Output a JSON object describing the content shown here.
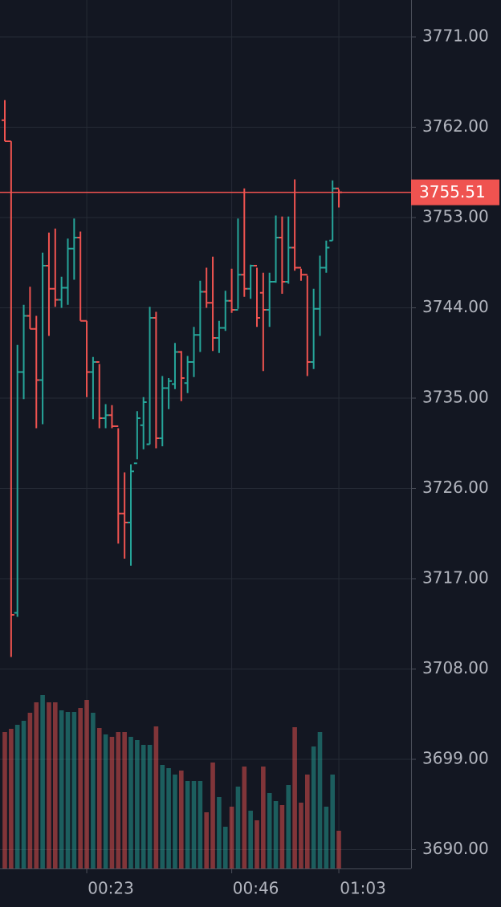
{
  "chart_data": {
    "type": "ohlc",
    "categories": [
      null,
      null,
      null,
      null,
      null,
      null,
      null,
      null,
      null,
      null,
      null,
      null,
      null,
      "00:23",
      null,
      null,
      null,
      null,
      null,
      null,
      null,
      null,
      null,
      null,
      null,
      null,
      null,
      null,
      null,
      null,
      null,
      null,
      null,
      null,
      null,
      null,
      "00:46",
      null,
      null,
      null,
      null,
      null,
      null,
      null,
      null,
      null,
      null,
      null,
      null,
      null,
      null,
      null,
      null,
      "01:03"
    ],
    "open": [
      3762.7,
      3760.6,
      3713.6,
      3737.6,
      3743.2,
      3741.9,
      3736.8,
      3748.2,
      3745.9,
      3744.8,
      3746.0,
      3749.9,
      3751.0,
      3742.7,
      3737.6,
      3738.6,
      3733.0,
      3733.3,
      3732.2,
      3723.5,
      3722.6,
      3728.5,
      3732.3,
      3730.4,
      3743.0,
      3731.0,
      3736.0,
      3736.4,
      3739.6,
      3736.5,
      3738.6,
      3741.3,
      3745.6,
      3744.5,
      3741.0,
      3742.0,
      3744.7,
      3743.8,
      3747.3,
      3745.9,
      3748.2,
      3745.5,
      3743.8,
      3746.6,
      3751.0,
      3746.6,
      3750.0,
      3748.0,
      3747.3,
      3738.6,
      3743.9,
      3748.0,
      3750.7,
      3755.9
    ],
    "high": [
      3764.7,
      3760.6,
      3740.3,
      3744.3,
      3746.1,
      3743.2,
      3749.5,
      3751.5,
      3751.9,
      3747.1,
      3750.9,
      3752.9,
      3751.6,
      3742.7,
      3739.1,
      3738.4,
      3734.4,
      3734.3,
      3732.0,
      3727.6,
      3728.4,
      3733.7,
      3735.1,
      3744.1,
      3743.6,
      3737.2,
      3737.0,
      3740.5,
      3739.7,
      3739.2,
      3742.1,
      3746.7,
      3748.0,
      3749.1,
      3742.7,
      3745.7,
      3747.9,
      3752.9,
      3755.9,
      3748.3,
      3748.0,
      3747.5,
      3747.5,
      3753.2,
      3753.1,
      3753.1,
      3756.8,
      3747.9,
      3747.2,
      3745.9,
      3749.2,
      3750.7,
      3756.7,
      3755.8
    ],
    "low": [
      3760.6,
      3709.2,
      3713.2,
      3734.9,
      3741.9,
      3732.0,
      3732.4,
      3741.2,
      3744.1,
      3744.0,
      3744.3,
      3746.8,
      3742.7,
      3735.1,
      3732.9,
      3732.0,
      3732.0,
      3732.0,
      3720.5,
      3719.0,
      3718.3,
      3728.9,
      3729.9,
      3730.4,
      3730.0,
      3730.2,
      3733.9,
      3735.9,
      3734.7,
      3735.5,
      3737.1,
      3739.6,
      3744.0,
      3739.7,
      3739.5,
      3741.7,
      3743.5,
      3743.9,
      3745.1,
      3744.9,
      3742.1,
      3737.7,
      3742.1,
      3746.5,
      3745.4,
      3746.4,
      3747.7,
      3746.7,
      3737.2,
      3737.9,
      3741.2,
      3747.5,
      3750.7,
      3754.0
    ],
    "close": [
      3760.6,
      3713.4,
      3737.6,
      3743.2,
      3741.9,
      3736.8,
      3748.2,
      3745.9,
      3744.8,
      3746.0,
      3749.9,
      3751.0,
      3742.7,
      3737.6,
      3738.6,
      3733.0,
      3733.3,
      3732.2,
      3723.5,
      3722.6,
      3727.7,
      3733.0,
      3734.6,
      3743.0,
      3731.0,
      3736.0,
      3736.7,
      3739.6,
      3737.0,
      3738.6,
      3741.3,
      3745.6,
      3744.5,
      3741.0,
      3742.0,
      3744.7,
      3743.8,
      3747.3,
      3745.9,
      3748.2,
      3743.0,
      3743.8,
      3746.6,
      3751.0,
      3746.6,
      3750.0,
      3748.0,
      3747.3,
      3738.6,
      3743.9,
      3748.0,
      3750.0,
      3755.9,
      3755.51
    ],
    "volume": [
      170,
      174,
      179,
      184,
      194,
      207,
      216,
      207,
      207,
      197,
      195,
      195,
      200,
      210,
      194,
      175,
      167,
      164,
      170,
      170,
      164,
      160,
      154,
      154,
      177,
      129,
      125,
      117,
      122,
      109,
      109,
      109,
      70,
      132,
      89,
      52,
      77,
      102,
      127,
      72,
      60,
      127,
      94,
      84,
      79,
      104,
      176,
      82,
      117,
      152,
      170,
      77,
      117,
      47
    ],
    "up_color": "#26a69a",
    "down_color": "#ef5350",
    "ylim": [
      3688.12,
      3774.68
    ],
    "yticks": [
      {
        "value": 3690,
        "label": "3690.00"
      },
      {
        "value": 3699,
        "label": "3699.00"
      },
      {
        "value": 3708,
        "label": "3708.00"
      },
      {
        "value": 3717,
        "label": "3717.00"
      },
      {
        "value": 3726,
        "label": "3726.00"
      },
      {
        "value": 3735,
        "label": "3735.00"
      },
      {
        "value": 3744,
        "label": "3744.00"
      },
      {
        "value": 3753,
        "label": "3753.00"
      },
      {
        "value": 3762,
        "label": "3762.00"
      },
      {
        "value": 3771,
        "label": "3771.00"
      }
    ],
    "last_price": 3755.51,
    "grid": true
  }
}
